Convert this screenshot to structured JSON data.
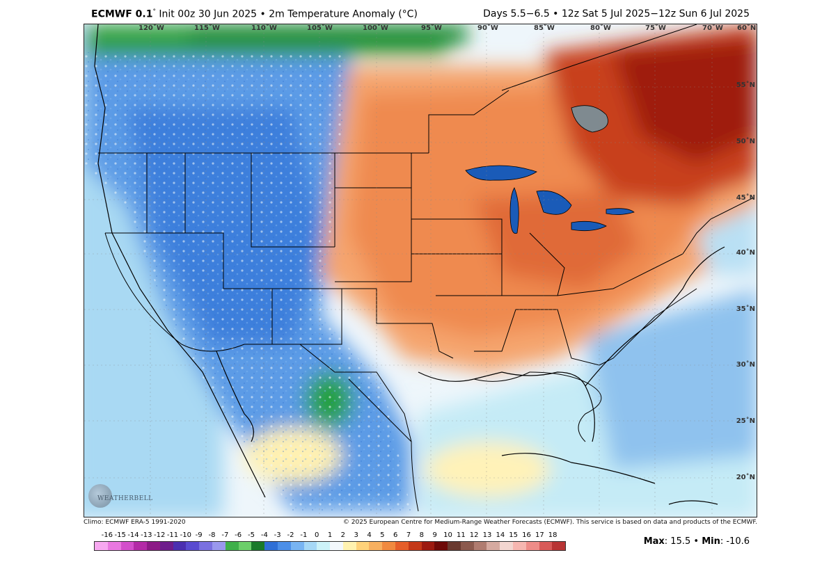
{
  "header": {
    "model": "ECMWF 0.1",
    "degree_mark": "°",
    "init_text": " Init 00z 30 Jun 2025 • 2m Temperature Anomaly (°C)",
    "valid_text": "Days 5.5−6.5 • 12z Sat 5 Jul 2025−12z Sun 6 Jul 2025"
  },
  "map": {
    "region": "North America / CONUS",
    "lon_labels": [
      "120˚W",
      "115˚W",
      "110˚W",
      "105˚W",
      "100˚W",
      "95˚W",
      "90˚W",
      "85˚W",
      "80˚W",
      "75˚W",
      "70˚W",
      "60˚N"
    ],
    "lat_labels": [
      "55˚N",
      "50˚N",
      "45˚N",
      "40˚N",
      "35˚N",
      "30˚N",
      "25˚N",
      "20˚N"
    ]
  },
  "footer": {
    "climo": "Climo: ECMWF ERA-5 1991-2020",
    "copyright": "© 2025 European Centre for Medium-Range Weather Forecasts (ECMWF). This service is based on data and products of the ECMWF.",
    "logo_text": "WEATHERBELL"
  },
  "colorbar": {
    "labels": [
      "-16",
      "-15",
      "-14",
      "-13",
      "-12",
      "-11",
      "-10",
      "-9",
      "-8",
      "-7",
      "-6",
      "-5",
      "-4",
      "-3",
      "-2",
      "-1",
      "0",
      "1",
      "2",
      "3",
      "4",
      "5",
      "6",
      "7",
      "8",
      "9",
      "10",
      "11",
      "12",
      "13",
      "14",
      "15",
      "16",
      "17",
      "18"
    ],
    "colors": [
      "#f7a8f0",
      "#e978e0",
      "#d34fcb",
      "#b32aa6",
      "#8c1a86",
      "#6e1d8c",
      "#4b2fb0",
      "#5a4bd0",
      "#7a70e0",
      "#9a98ee",
      "#3fb04a",
      "#6ccf6a",
      "#1a7a2a",
      "#2f6fd6",
      "#4c8fe8",
      "#78b4f2",
      "#a6d8f6",
      "#ccf2f8",
      "#f3f8fc",
      "#fff2b0",
      "#ffd27a",
      "#f7b060",
      "#f08a40",
      "#e55e2a",
      "#c43818",
      "#9c1a10",
      "#6e0a08",
      "#6a3a30",
      "#8c5a4e",
      "#b07c70",
      "#d6aaa0",
      "#f2d6d0",
      "#f6b6b0",
      "#ee8c88",
      "#d85a58",
      "#b83434"
    ]
  },
  "stats": {
    "max_label": "Max",
    "max_value": ": 15.5 • ",
    "min_label": "Min",
    "min_value": ": -10.6"
  }
}
